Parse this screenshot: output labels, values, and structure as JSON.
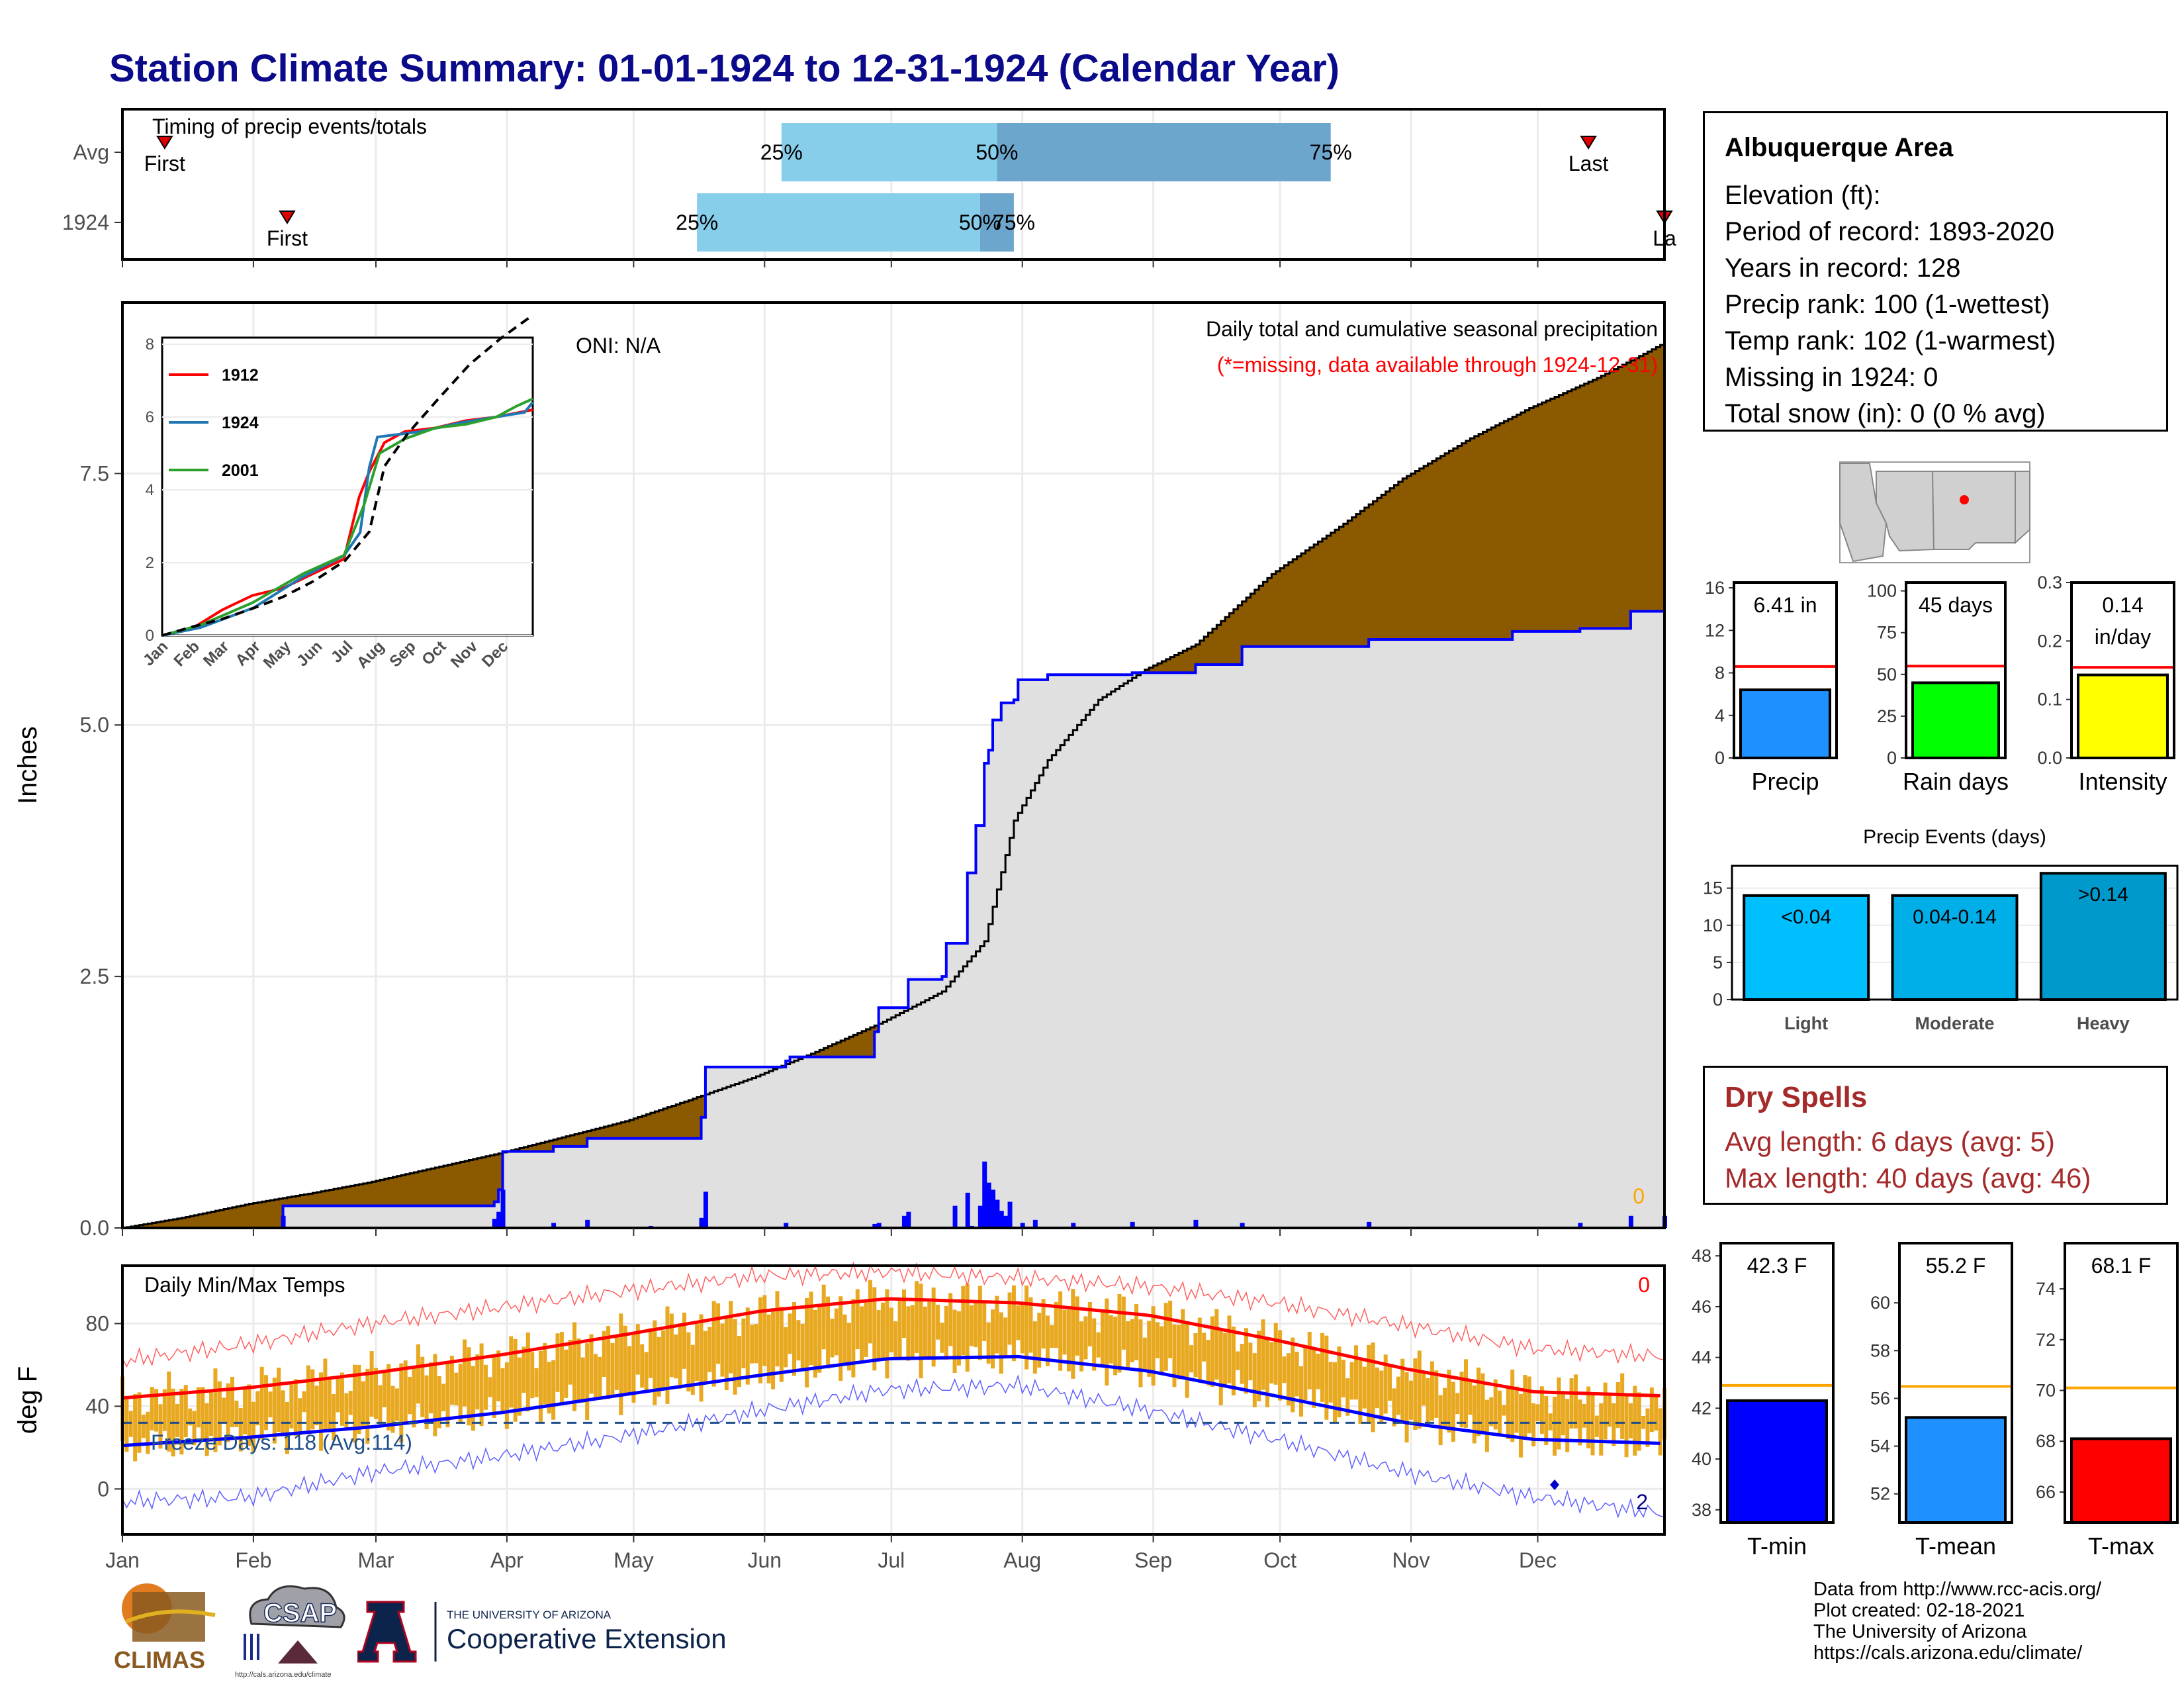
{
  "title": "Station Climate Summary: 01-01-1924 to 12-31-1924 (Calendar Year)",
  "station": {
    "name": "Albuquerque Area",
    "lines": [
      "Elevation (ft):",
      "Period of record: 1893-2020",
      "Years in record: 128",
      "Precip rank: 100 (1-wettest)",
      "Temp rank: 102 (1-warmest)",
      "Missing in 1924: 0",
      "Total snow (in): 0 (0 % avg)"
    ]
  },
  "dry_spells": {
    "title": "Dry Spells",
    "avg_length": "Avg length: 6 days (avg: 5)",
    "max_length": "Max length: 40 days (avg: 46)"
  },
  "footer": {
    "lines": [
      "Data from http://www.rcc-acis.org/",
      "Plot created: 02-18-2021",
      "The University of Arizona",
      "https://cals.arizona.edu/climate/"
    ]
  },
  "logos": {
    "climas": "CLIMAS",
    "csap": "CSAP",
    "csap_url": "http://cals.arizona.edu/climate",
    "ua_top": "THE UNIVERSITY OF ARIZONA",
    "ua_bottom": "Cooperative Extension"
  },
  "colors": {
    "title": "#0a0a8a",
    "brown": "#8b5a00",
    "green": "#008000",
    "blue": "#0000ff",
    "gray_fill": "#e0e0e0",
    "bar_light": "#87ceeb",
    "bar_dark": "#6ca6cd",
    "temp_bar": "#e8a820",
    "red": "#ff0000",
    "orange": "#ffa500"
  },
  "chart_data": [
    {
      "id": "timing",
      "type": "bar",
      "title": "Timing of precip events/totals",
      "rows": [
        {
          "label": "Avg",
          "first_day": 11,
          "q25_day": 157,
          "q50_day": 208,
          "q75_day": 287,
          "last_day": 348,
          "first_label": "First",
          "last_label": "Last",
          "q25_label": "25%",
          "q50_label": "50%",
          "q75_label": "75%"
        },
        {
          "label": "1924",
          "first_day": 40,
          "q25_day": 137,
          "q50_day": 204,
          "q75_day": 212,
          "last_day": 366,
          "first_label": "First",
          "last_label": "La",
          "q25_label": "25%",
          "q50_label": "50%",
          "q75_label": "75%"
        }
      ]
    },
    {
      "id": "cumulative_precip",
      "type": "area",
      "title": "Daily total and cumulative seasonal precipitation",
      "subtitle": "(*=missing, data available through 1924-12-31)",
      "oni": "ONI: N/A",
      "ylabel": "Inches",
      "ylim": [
        0,
        9.2
      ],
      "yticks": [
        "0.0",
        "2.5",
        "5.0",
        "7.5"
      ],
      "months": [
        "Jan",
        "Feb",
        "Mar",
        "Apr",
        "May",
        "Jun",
        "Jul",
        "Aug",
        "Sep",
        "Oct",
        "Nov",
        "Dec"
      ],
      "missing_count": "0",
      "avg_cumulative": [
        [
          1,
          0
        ],
        [
          15,
          0.1
        ],
        [
          31,
          0.24
        ],
        [
          45,
          0.34
        ],
        [
          59,
          0.45
        ],
        [
          75,
          0.6
        ],
        [
          90,
          0.74
        ],
        [
          105,
          0.9
        ],
        [
          120,
          1.06
        ],
        [
          135,
          1.27
        ],
        [
          150,
          1.49
        ],
        [
          165,
          1.75
        ],
        [
          181,
          2.05
        ],
        [
          195,
          2.35
        ],
        [
          205,
          2.85
        ],
        [
          212,
          4.05
        ],
        [
          220,
          4.65
        ],
        [
          232,
          5.25
        ],
        [
          243,
          5.55
        ],
        [
          255,
          5.8
        ],
        [
          273,
          6.5
        ],
        [
          290,
          7.0
        ],
        [
          304,
          7.45
        ],
        [
          320,
          7.85
        ],
        [
          334,
          8.15
        ],
        [
          350,
          8.45
        ],
        [
          366,
          8.8
        ]
      ],
      "year_cumulative": [
        [
          1,
          0
        ],
        [
          38,
          0
        ],
        [
          39,
          0.22
        ],
        [
          89,
          0.26
        ],
        [
          90,
          0.38
        ],
        [
          91,
          0.76
        ],
        [
          102,
          0.76
        ],
        [
          103,
          0.81
        ],
        [
          110,
          0.81
        ],
        [
          111,
          0.89
        ],
        [
          137,
          0.89
        ],
        [
          138,
          1.1
        ],
        [
          139,
          1.6
        ],
        [
          158,
          1.66
        ],
        [
          159,
          1.7
        ],
        [
          179,
          1.95
        ],
        [
          180,
          2.19
        ],
        [
          187,
          2.47
        ],
        [
          195,
          2.5
        ],
        [
          196,
          2.83
        ],
        [
          200,
          2.83
        ],
        [
          201,
          3.53
        ],
        [
          203,
          4.0
        ],
        [
          205,
          4.62
        ],
        [
          206,
          4.75
        ],
        [
          207,
          5.05
        ],
        [
          209,
          5.22
        ],
        [
          212,
          5.25
        ],
        [
          213,
          5.45
        ],
        [
          220,
          5.5
        ],
        [
          240,
          5.52
        ],
        [
          255,
          5.6
        ],
        [
          266,
          5.78
        ],
        [
          296,
          5.85
        ],
        [
          330,
          5.93
        ],
        [
          346,
          5.96
        ],
        [
          358,
          6.13
        ],
        [
          366,
          6.41
        ]
      ],
      "daily_bars": [
        [
          39,
          0.12
        ],
        [
          89,
          0.09
        ],
        [
          90,
          0.16
        ],
        [
          91,
          0.38
        ],
        [
          103,
          0.05
        ],
        [
          111,
          0.08
        ],
        [
          126,
          0.02
        ],
        [
          138,
          0.1
        ],
        [
          139,
          0.36
        ],
        [
          158,
          0.05
        ],
        [
          179,
          0.04
        ],
        [
          180,
          0.05
        ],
        [
          186,
          0.12
        ],
        [
          187,
          0.16
        ],
        [
          198,
          0.22
        ],
        [
          201,
          0.35
        ],
        [
          202,
          0.02
        ],
        [
          204,
          0.22
        ],
        [
          205,
          0.66
        ],
        [
          206,
          0.45
        ],
        [
          207,
          0.38
        ],
        [
          208,
          0.28
        ],
        [
          209,
          0.17
        ],
        [
          210,
          0.12
        ],
        [
          211,
          0.26
        ],
        [
          214,
          0.05
        ],
        [
          217,
          0.08
        ],
        [
          226,
          0.05
        ],
        [
          240,
          0.06
        ],
        [
          255,
          0.08
        ],
        [
          266,
          0.05
        ],
        [
          296,
          0.06
        ],
        [
          346,
          0.05
        ],
        [
          358,
          0.12
        ],
        [
          366,
          0.12
        ]
      ],
      "inset": {
        "ylim": [
          0,
          8
        ],
        "yticks": [
          "0",
          "2",
          "4",
          "6",
          "8"
        ],
        "months": [
          "Jan",
          "Feb",
          "Mar",
          "Apr",
          "May",
          "Jun",
          "Jul",
          "Aug",
          "Sep",
          "Oct",
          "Nov",
          "Dec"
        ],
        "series": [
          {
            "name": "1912",
            "color": "#ff0000",
            "values": [
              [
                1,
                0
              ],
              [
                31,
                0.2
              ],
              [
                60,
                0.7
              ],
              [
                90,
                1.1
              ],
              [
                120,
                1.3
              ],
              [
                150,
                1.7
              ],
              [
                180,
                2.1
              ],
              [
                195,
                3.8
              ],
              [
                205,
                4.5
              ],
              [
                220,
                5.3
              ],
              [
                240,
                5.6
              ],
              [
                270,
                5.7
              ],
              [
                300,
                5.9
              ],
              [
                330,
                6.0
              ],
              [
                366,
                6.2
              ]
            ]
          },
          {
            "name": "1924",
            "color": "#1f77b4",
            "values": [
              [
                1,
                0
              ],
              [
                39,
                0.22
              ],
              [
                91,
                0.76
              ],
              [
                139,
                1.6
              ],
              [
                180,
                2.19
              ],
              [
                196,
                2.83
              ],
              [
                205,
                4.62
              ],
              [
                213,
                5.45
              ],
              [
                255,
                5.6
              ],
              [
                296,
                5.85
              ],
              [
                358,
                6.13
              ],
              [
                366,
                6.41
              ]
            ]
          },
          {
            "name": "2001",
            "color": "#2ca02c",
            "values": [
              [
                1,
                0
              ],
              [
                40,
                0.3
              ],
              [
                90,
                0.9
              ],
              [
                140,
                1.7
              ],
              [
                180,
                2.2
              ],
              [
                200,
                3.6
              ],
              [
                215,
                5.0
              ],
              [
                240,
                5.4
              ],
              [
                270,
                5.7
              ],
              [
                300,
                5.8
              ],
              [
                330,
                6.0
              ],
              [
                350,
                6.3
              ],
              [
                366,
                6.5
              ]
            ]
          },
          {
            "name": "",
            "color": "#000000",
            "dashed": true,
            "values": [
              [
                1,
                0
              ],
              [
                31,
                0.24
              ],
              [
                60,
                0.45
              ],
              [
                90,
                0.74
              ],
              [
                120,
                1.06
              ],
              [
                150,
                1.49
              ],
              [
                181,
                2.05
              ],
              [
                205,
                2.85
              ],
              [
                220,
                4.65
              ],
              [
                243,
                5.55
              ],
              [
                273,
                6.5
              ],
              [
                304,
                7.45
              ],
              [
                334,
                8.15
              ],
              [
                366,
                8.8
              ]
            ]
          }
        ]
      }
    },
    {
      "id": "temps",
      "type": "line",
      "title": "Daily Min/Max Temps",
      "ylabel": "deg F",
      "ylim": [
        -22,
        108
      ],
      "yticks": [
        "0",
        "40",
        "80"
      ],
      "freeze_line": 32,
      "freeze_label": "Freeze Days: 118 (Avg:114)",
      "missing_count": "0",
      "cold_count": "2",
      "avg_max": [
        [
          1,
          44
        ],
        [
          31,
          49
        ],
        [
          60,
          56
        ],
        [
          91,
          65
        ],
        [
          121,
          75
        ],
        [
          152,
          86
        ],
        [
          182,
          92
        ],
        [
          213,
          90
        ],
        [
          244,
          84
        ],
        [
          274,
          72
        ],
        [
          305,
          58
        ],
        [
          335,
          47
        ],
        [
          366,
          45
        ]
      ],
      "avg_min": [
        [
          1,
          21
        ],
        [
          31,
          25
        ],
        [
          60,
          30
        ],
        [
          91,
          37
        ],
        [
          121,
          46
        ],
        [
          152,
          55
        ],
        [
          182,
          63
        ],
        [
          213,
          64
        ],
        [
          244,
          57
        ],
        [
          274,
          45
        ],
        [
          305,
          32
        ],
        [
          335,
          24
        ],
        [
          366,
          22
        ]
      ],
      "record_max": [
        [
          1,
          62
        ],
        [
          31,
          70
        ],
        [
          60,
          80
        ],
        [
          91,
          88
        ],
        [
          121,
          96
        ],
        [
          152,
          103
        ],
        [
          182,
          105
        ],
        [
          213,
          102
        ],
        [
          244,
          98
        ],
        [
          274,
          90
        ],
        [
          305,
          79
        ],
        [
          335,
          68
        ],
        [
          366,
          64
        ]
      ],
      "record_min": [
        [
          1,
          -6
        ],
        [
          31,
          -4
        ],
        [
          60,
          8
        ],
        [
          91,
          16
        ],
        [
          121,
          26
        ],
        [
          152,
          38
        ],
        [
          182,
          48
        ],
        [
          213,
          50
        ],
        [
          244,
          38
        ],
        [
          274,
          24
        ],
        [
          305,
          8
        ],
        [
          335,
          -4
        ],
        [
          366,
          -12
        ]
      ]
    },
    {
      "id": "precip_summary",
      "type": "bar",
      "panels": [
        {
          "label": "Precip",
          "value": 6.41,
          "value_text": "6.41 in",
          "avg": 8.6,
          "ylim": [
            0,
            16.5
          ],
          "yticks": [
            "0",
            "4",
            "8",
            "12",
            "16"
          ],
          "color": "#1e90ff"
        },
        {
          "label": "Rain days",
          "value": 45,
          "value_text": "45 days",
          "avg": 55,
          "ylim": [
            0,
            105
          ],
          "yticks": [
            "0",
            "25",
            "50",
            "75",
            "100"
          ],
          "color": "#00ff00"
        },
        {
          "label": "Intensity",
          "value": 0.142,
          "value_text": "0.14 in/day",
          "avg": 0.155,
          "ylim": [
            0,
            0.3
          ],
          "yticks": [
            "0.0",
            "0.1",
            "0.2",
            "0.3"
          ],
          "color": "#ffff00"
        }
      ]
    },
    {
      "id": "precip_events",
      "type": "bar",
      "title": "Precip Events (days)",
      "categories": [
        "Light",
        "Moderate",
        "Heavy"
      ],
      "bar_labels": [
        "<0.04",
        "0.04-0.14",
        ">0.14"
      ],
      "values": [
        14,
        14,
        17
      ],
      "ylim": [
        0,
        18
      ],
      "yticks": [
        "0",
        "5",
        "10",
        "15"
      ],
      "colors": [
        "#00bfff",
        "#00aee8",
        "#0099cc"
      ]
    },
    {
      "id": "temp_summary",
      "type": "bar",
      "panels": [
        {
          "label": "T-min",
          "value": 42.3,
          "value_text": "42.3 F",
          "avg": 42.9,
          "ylim": [
            37.5,
            48.5
          ],
          "yticks": [
            "38",
            "40",
            "42",
            "44",
            "46",
            "48"
          ],
          "color": "#0000ff"
        },
        {
          "label": "T-mean",
          "value": 55.2,
          "value_text": "55.2 F",
          "avg": 56.5,
          "ylim": [
            50.8,
            62.5
          ],
          "yticks": [
            "52",
            "54",
            "56",
            "58",
            "60"
          ],
          "color": "#1e90ff"
        },
        {
          "label": "T-max",
          "value": 68.1,
          "value_text": "68.1 F",
          "avg": 70.1,
          "ylim": [
            64.8,
            75.8
          ],
          "yticks": [
            "66",
            "68",
            "70",
            "72",
            "74"
          ],
          "color": "#ff0000"
        }
      ]
    }
  ]
}
